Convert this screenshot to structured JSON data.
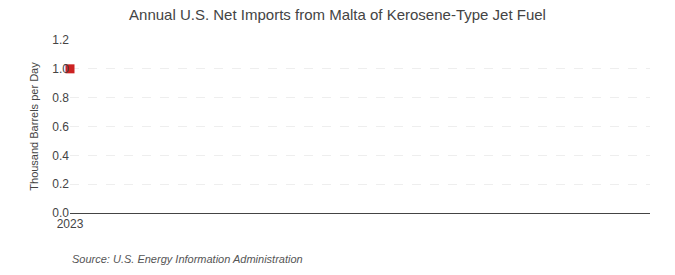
{
  "chart_data": {
    "type": "scatter",
    "title": "Annual U.S. Net Imports from Malta of Kerosene-Type Jet Fuel",
    "ylabel": "Thousand Barrels per Day",
    "annotations": [
      "Source: U.S. Energy Information Administration"
    ],
    "x": [
      2023
    ],
    "values": [
      1.0
    ],
    "color": "#cc2222",
    "marker": "square",
    "xlim": [
      2023,
      2024.8
    ],
    "xticks": [
      2023
    ],
    "ylim": [
      0.0,
      1.2
    ],
    "yticks": [
      {
        "value": 0.0,
        "label": "0.0"
      },
      0.2,
      0.4,
      0.6,
      0.8,
      {
        "value": 1.0,
        "label": "1.0"
      },
      1.2
    ],
    "grid": true
  }
}
